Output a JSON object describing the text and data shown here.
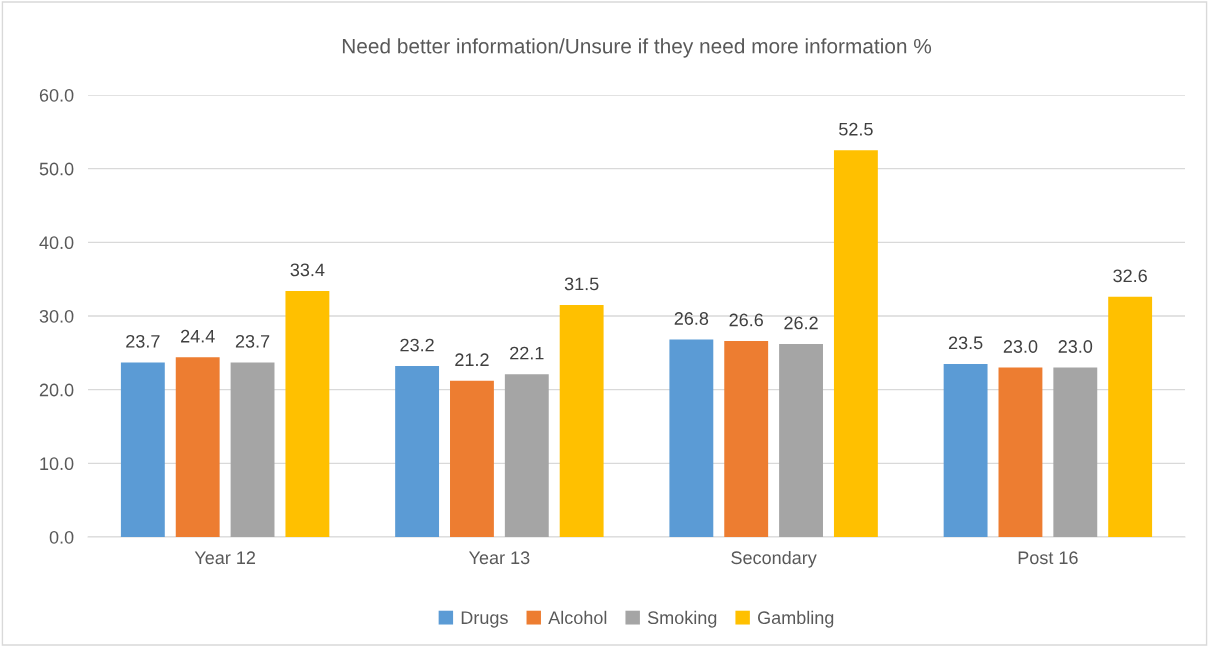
{
  "chart_data": {
    "type": "bar",
    "title": "Need better information/Unsure if they need more information %",
    "categories": [
      "Year 12",
      "Year 13",
      "Secondary",
      "Post 16"
    ],
    "series": [
      {
        "name": "Drugs",
        "color": "#5b9bd5",
        "values": [
          23.7,
          23.2,
          26.8,
          23.5
        ],
        "value_labels": [
          "23.7",
          "23.2",
          "26.8",
          "23.5"
        ]
      },
      {
        "name": "Alcohol",
        "color": "#ed7d31",
        "values": [
          24.4,
          21.2,
          26.6,
          23.0
        ],
        "value_labels": [
          "24.4",
          "21.2",
          "26.6",
          "23.0"
        ]
      },
      {
        "name": "Smoking",
        "color": "#a5a5a5",
        "values": [
          23.7,
          22.1,
          26.2,
          23.0
        ],
        "value_labels": [
          "23.7",
          "22.1",
          "26.2",
          "23.0"
        ]
      },
      {
        "name": "Gambling",
        "color": "#ffc000",
        "values": [
          33.4,
          31.5,
          52.5,
          32.6
        ],
        "value_labels": [
          "33.4",
          "31.5",
          "52.5",
          "32.6"
        ]
      }
    ],
    "ylim": [
      0,
      60
    ],
    "yticks": [
      {
        "value": 0,
        "label": "0.0"
      },
      {
        "value": 10,
        "label": "10.0"
      },
      {
        "value": 20,
        "label": "20.0"
      },
      {
        "value": 30,
        "label": "30.0"
      },
      {
        "value": 40,
        "label": "40.0"
      },
      {
        "value": 50,
        "label": "50.0"
      },
      {
        "value": 60,
        "label": "60.0"
      }
    ],
    "grid": "y",
    "legend": "bottom"
  }
}
